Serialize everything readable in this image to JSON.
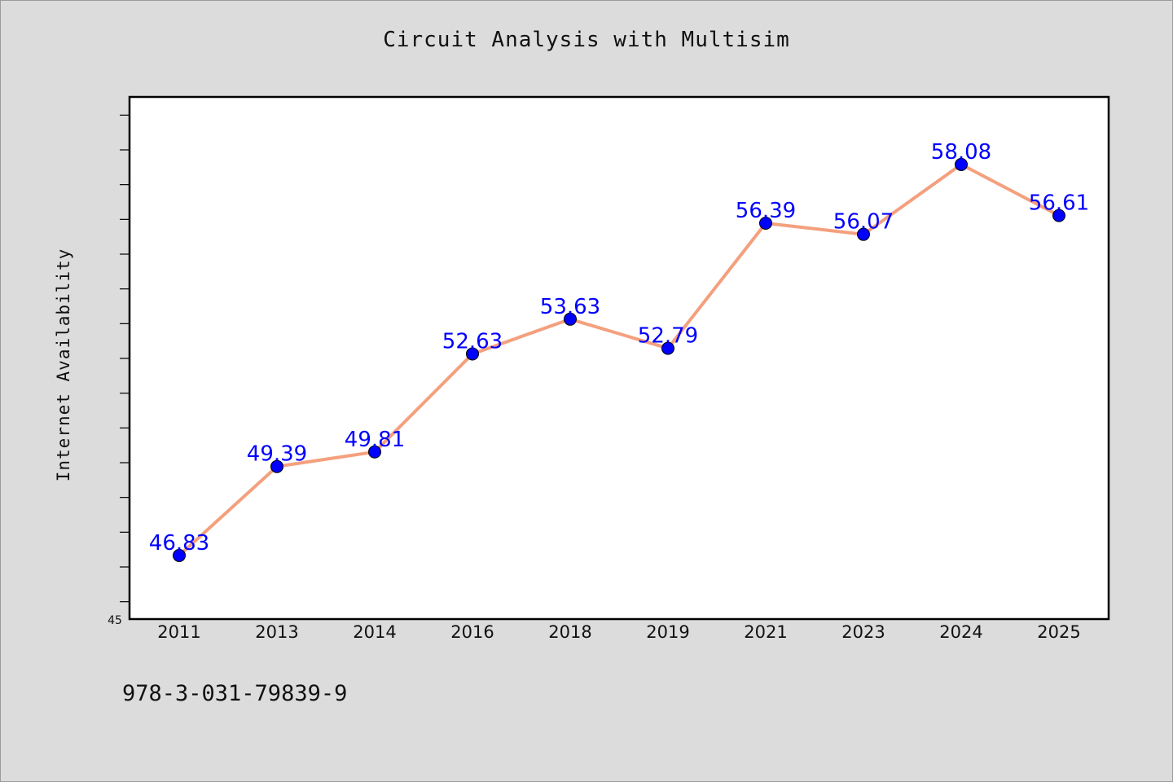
{
  "isbn": "978-3-031-79839-9",
  "chart_data": {
    "type": "line",
    "title": "Circuit Analysis with Multisim",
    "xlabel": "",
    "ylabel": "Internet Availability",
    "categories": [
      "2011",
      "2013",
      "2014",
      "2016",
      "2018",
      "2019",
      "2021",
      "2023",
      "2024",
      "2025"
    ],
    "series": [
      {
        "values": [
          46.83,
          49.39,
          49.81,
          52.63,
          53.63,
          52.79,
          56.39,
          56.07,
          58.08,
          56.61
        ],
        "labels": [
          "46.83",
          "49.39",
          "49.81",
          "52.63",
          "53.63",
          "52.79",
          "56.39",
          "56.07",
          "58.08",
          "56.61"
        ]
      }
    ],
    "y_tick_label": "45",
    "ylim": [
      45,
      60
    ],
    "grid": false,
    "legend": "none",
    "colors": {
      "line": "#f4a07e",
      "marker": "#0000ff",
      "label": "#0000ff",
      "plot_background": "#ffffff",
      "page_background": "#dcdcdc"
    }
  }
}
